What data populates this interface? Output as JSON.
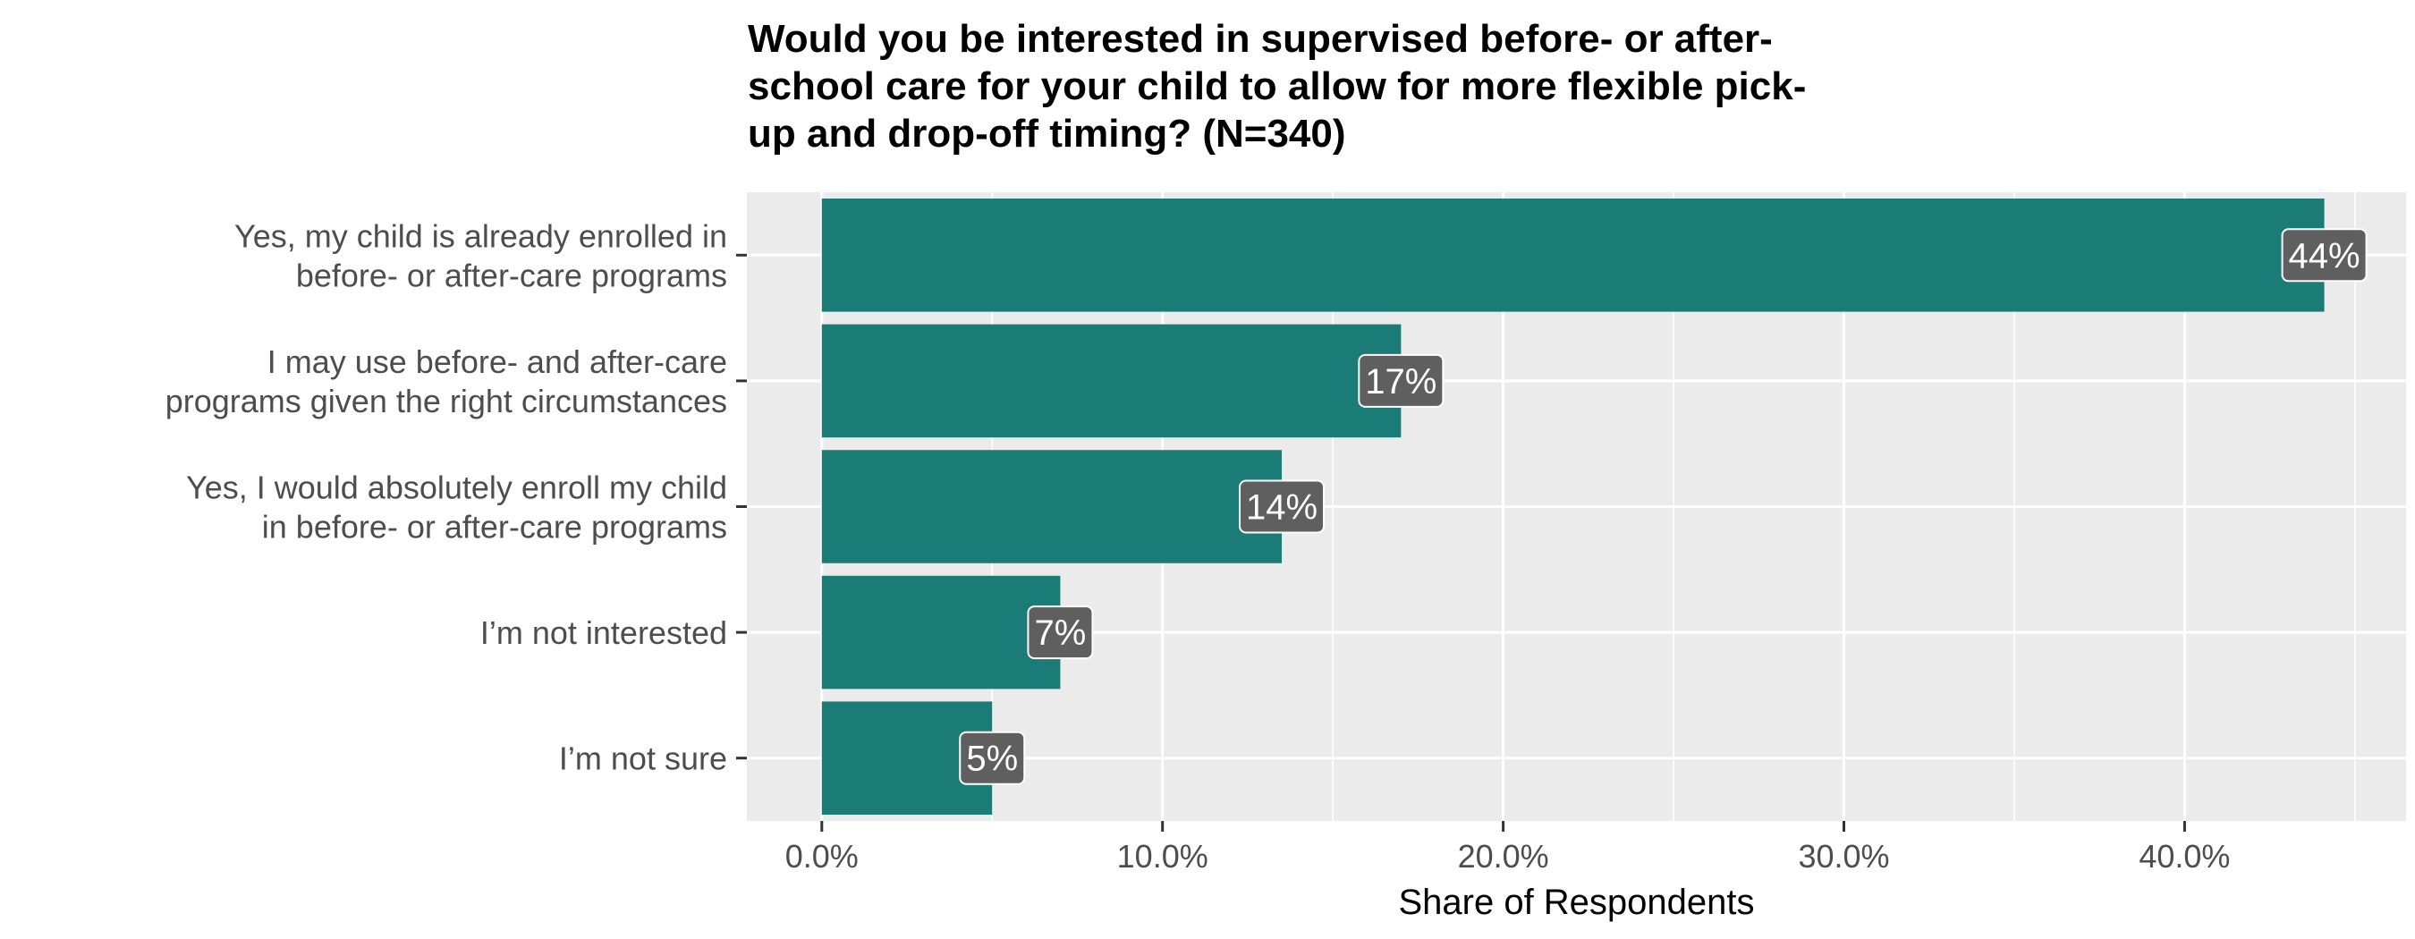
{
  "chart_data": {
    "type": "bar",
    "orientation": "horizontal",
    "title": "Would you be interested in supervised before- or after-school care for your child to allow for more flexible pick-up and drop-off timing? (N=340)",
    "title_lines": [
      "Would you be interested in supervised before- or after-",
      "school care for your child to allow for more flexible pick-",
      "up and drop-off timing? (N=340)"
    ],
    "xlabel": "Share of Respondents",
    "ylabel": "",
    "xlim": [
      -0.022,
      0.465
    ],
    "x_ticks": [
      0,
      0.1,
      0.2,
      0.3,
      0.4
    ],
    "x_tick_labels": [
      "0.0%",
      "10.0%",
      "20.0%",
      "30.0%",
      "40.0%"
    ],
    "grid": true,
    "legend": "none",
    "categories": [
      [
        "Yes, my child is already enrolled in",
        "before- or after-care programs"
      ],
      [
        "I may use before- and after-care",
        "programs given the right circumstances"
      ],
      [
        "Yes, I would absolutely enroll my child",
        "in before- or after-care programs"
      ],
      [
        "I’m not interested"
      ],
      [
        "I’m not sure"
      ]
    ],
    "values": [
      0.441,
      0.17,
      0.135,
      0.07,
      0.05
    ],
    "data_labels": [
      "44%",
      "17%",
      "14%",
      "7%",
      "5%"
    ],
    "colors": {
      "bar": "#1b7b77",
      "panel": "#ebebeb",
      "grid": "#ffffff",
      "label_box": "#5f5f5f",
      "label_text": "#ffffff"
    }
  }
}
